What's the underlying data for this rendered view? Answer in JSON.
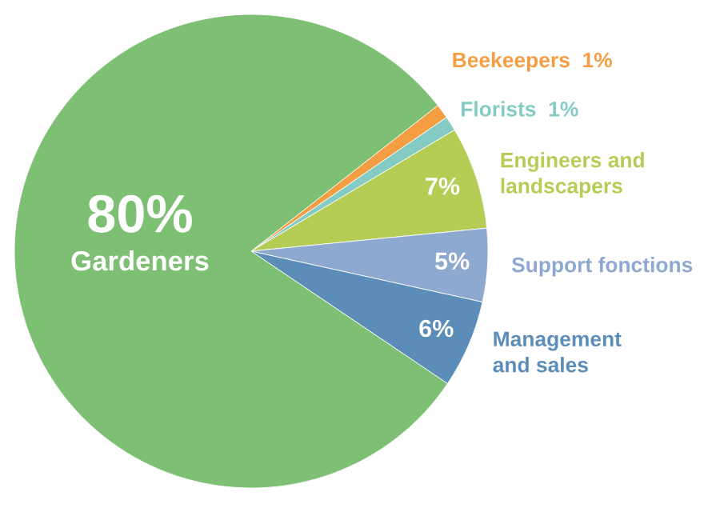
{
  "chart_data": {
    "type": "pie",
    "categories": [
      "Beekeepers",
      "Florists",
      "Engineers and\nlandscapers",
      "Support fonctions",
      "Management\nand sales",
      "Gardeners"
    ],
    "values": [
      1,
      1,
      7,
      5,
      6,
      80
    ],
    "colors": [
      "#f59d42",
      "#84cbc3",
      "#b5cc55",
      "#8ea9d0",
      "#5b8db8",
      "#7dbf73"
    ],
    "value_labels": [
      "1%",
      "1%",
      "7%",
      "5%",
      "6%",
      "80%"
    ]
  }
}
